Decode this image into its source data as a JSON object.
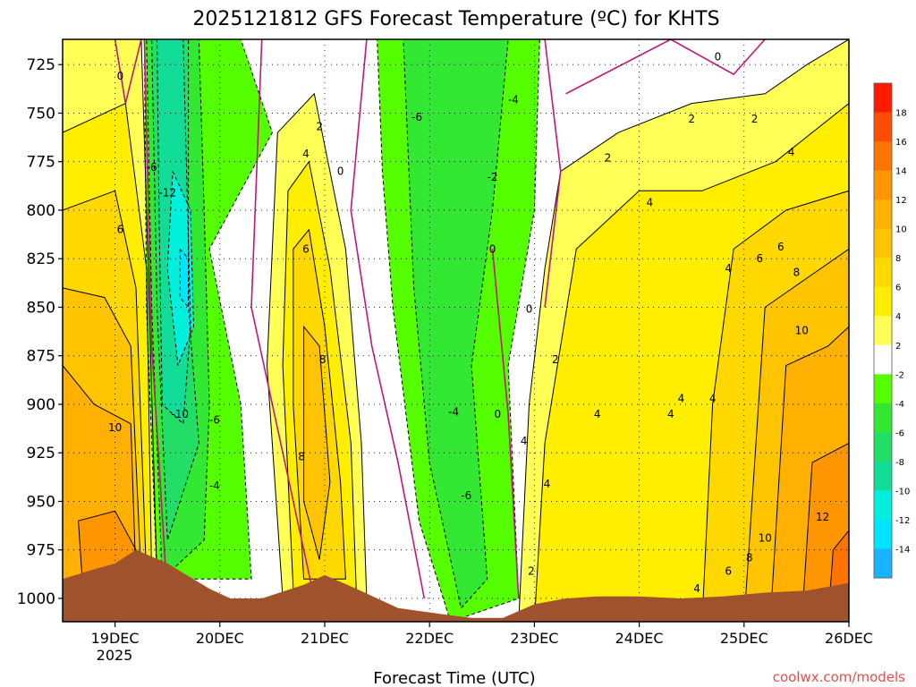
{
  "chart_data": {
    "type": "heatmap",
    "title": "2025121812 GFS Forecast Temperature (ºC) for KHTS",
    "xlabel": "Forecast Time (UTC)",
    "ylabel": "",
    "x_tick_labels": [
      "19DEC",
      "20DEC",
      "21DEC",
      "22DEC",
      "23DEC",
      "24DEC",
      "25DEC",
      "26DEC"
    ],
    "x_year_label": "2025",
    "xlim_days": [
      18.5,
      26.0
    ],
    "y_tick_labels": [
      "725",
      "750",
      "775",
      "800",
      "825",
      "850",
      "875",
      "900",
      "925",
      "950",
      "975",
      "1000"
    ],
    "ylim": [
      1012,
      712
    ],
    "colorbar": {
      "labels": [
        "18",
        "16",
        "14",
        "12",
        "10",
        "8",
        "6",
        "4",
        "2",
        "-2",
        "-4",
        "-6",
        "-8",
        "-10",
        "-12",
        "-14"
      ],
      "colors": [
        "#ff1a00",
        "#ff4d00",
        "#ff7300",
        "#ff9500",
        "#ffb000",
        "#ffc400",
        "#ffd800",
        "#ffee00",
        "#ffff55",
        "#ffffff",
        "#55ff00",
        "#33e833",
        "#22dd66",
        "#11dd99",
        "#00f0dd",
        "#00e5ff",
        "#1ab3ff"
      ]
    },
    "contour_labels": [
      {
        "text": "0",
        "x": 19.05,
        "y": 731
      },
      {
        "text": "-6",
        "x": 19.35,
        "y": 778
      },
      {
        "text": "-12",
        "x": 19.5,
        "y": 791
      },
      {
        "text": "6",
        "x": 19.05,
        "y": 810
      },
      {
        "text": "10",
        "x": 19.0,
        "y": 912
      },
      {
        "text": "-10",
        "x": 19.62,
        "y": 905
      },
      {
        "text": "-6",
        "x": 19.95,
        "y": 908
      },
      {
        "text": "-4",
        "x": 19.95,
        "y": 942
      },
      {
        "text": "2",
        "x": 20.95,
        "y": 757
      },
      {
        "text": "4",
        "x": 20.82,
        "y": 771
      },
      {
        "text": "0",
        "x": 21.15,
        "y": 780
      },
      {
        "text": "6",
        "x": 20.82,
        "y": 820
      },
      {
        "text": "8",
        "x": 20.98,
        "y": 877
      },
      {
        "text": "8",
        "x": 20.78,
        "y": 927
      },
      {
        "text": "-6",
        "x": 21.88,
        "y": 752
      },
      {
        "text": "-4",
        "x": 22.8,
        "y": 743
      },
      {
        "text": "-2",
        "x": 22.6,
        "y": 783
      },
      {
        "text": "0",
        "x": 22.6,
        "y": 820
      },
      {
        "text": "-4",
        "x": 22.23,
        "y": 904
      },
      {
        "text": "0",
        "x": 22.65,
        "y": 905
      },
      {
        "text": "-6",
        "x": 22.35,
        "y": 947
      },
      {
        "text": "0",
        "x": 22.95,
        "y": 851
      },
      {
        "text": "2",
        "x": 23.2,
        "y": 877
      },
      {
        "text": "4",
        "x": 22.9,
        "y": 919
      },
      {
        "text": "4",
        "x": 23.12,
        "y": 941
      },
      {
        "text": "2",
        "x": 22.97,
        "y": 986
      },
      {
        "text": "2",
        "x": 23.7,
        "y": 773
      },
      {
        "text": "2",
        "x": 24.5,
        "y": 753
      },
      {
        "text": "4",
        "x": 24.1,
        "y": 796
      },
      {
        "text": "4",
        "x": 23.6,
        "y": 905
      },
      {
        "text": "4",
        "x": 24.4,
        "y": 897
      },
      {
        "text": "4",
        "x": 24.7,
        "y": 897
      },
      {
        "text": "4",
        "x": 24.85,
        "y": 830
      },
      {
        "text": "6",
        "x": 25.15,
        "y": 825
      },
      {
        "text": "8",
        "x": 25.5,
        "y": 832
      },
      {
        "text": "6",
        "x": 25.35,
        "y": 819
      },
      {
        "text": "10",
        "x": 25.55,
        "y": 862
      },
      {
        "text": "4",
        "x": 25.45,
        "y": 770
      },
      {
        "text": "2",
        "x": 25.1,
        "y": 753
      },
      {
        "text": "0",
        "x": 24.75,
        "y": 721
      },
      {
        "text": "10",
        "x": 25.2,
        "y": 969
      },
      {
        "text": "8",
        "x": 25.05,
        "y": 979
      },
      {
        "text": "6",
        "x": 24.85,
        "y": 986
      },
      {
        "text": "4",
        "x": 24.55,
        "y": 995
      },
      {
        "text": "12",
        "x": 25.75,
        "y": 958
      },
      {
        "text": "4",
        "x": 24.3,
        "y": 905
      }
    ],
    "grid": true
  },
  "credit": "coolwx.com/models"
}
